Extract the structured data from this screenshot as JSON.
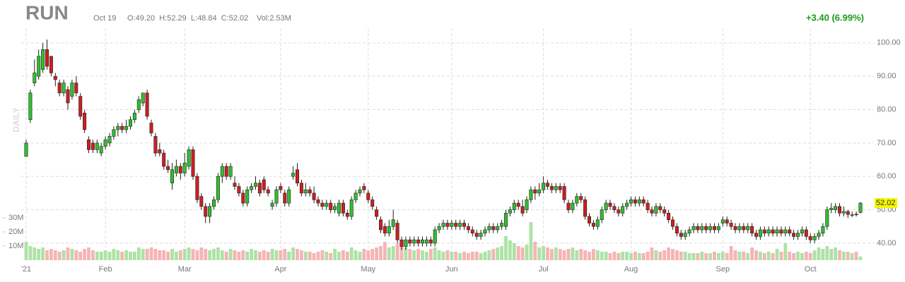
{
  "chart_data": {
    "type": "candlestick",
    "title": "RUN",
    "date_label": "Oct 19",
    "ohlc_label": "O:49.20  H:52.29  L:48.84  C:52.02",
    "volume_label": "Vol:2.53M",
    "change_label": "+3.40 (6.99%)",
    "axis_label": "DAILY",
    "last_price_label": "52.02",
    "categories": [
      "'21",
      null,
      null,
      null,
      null,
      null,
      null,
      null,
      null,
      null,
      null,
      null,
      null,
      null,
      null,
      null,
      null,
      null,
      null,
      "Feb",
      null,
      null,
      null,
      null,
      null,
      null,
      null,
      null,
      null,
      null,
      null,
      null,
      null,
      null,
      null,
      null,
      null,
      null,
      "Mar",
      null,
      null,
      null,
      null,
      null,
      null,
      null,
      null,
      null,
      null,
      null,
      null,
      null,
      null,
      null,
      null,
      null,
      null,
      null,
      null,
      null,
      null,
      "Apr",
      null,
      null,
      null,
      null,
      null,
      null,
      null,
      null,
      null,
      null,
      null,
      null,
      null,
      null,
      null,
      null,
      null,
      null,
      null,
      null,
      "May",
      null,
      null,
      null,
      null,
      null,
      null,
      null,
      null,
      null,
      null,
      null,
      null,
      null,
      null,
      null,
      null,
      null,
      null,
      null,
      "Jun",
      null,
      null,
      null,
      null,
      null,
      null,
      null,
      null,
      null,
      null,
      null,
      null,
      null,
      null,
      null,
      null,
      null,
      null,
      null,
      null,
      null,
      "Jul",
      null,
      null,
      null,
      null,
      null,
      null,
      null,
      null,
      null,
      null,
      null,
      null,
      null,
      null,
      null,
      null,
      null,
      null,
      null,
      null,
      "Aug",
      null,
      null,
      null,
      null,
      null,
      null,
      null,
      null,
      null,
      null,
      null,
      null,
      null,
      null,
      null,
      null,
      null,
      null,
      null,
      null,
      null,
      "Sep",
      null,
      null,
      null,
      null,
      null,
      null,
      null,
      null,
      null,
      null,
      null,
      null,
      null,
      null,
      null,
      null,
      null,
      null,
      null,
      null,
      "Oct",
      null,
      null,
      null,
      null,
      null,
      null,
      null,
      null,
      null,
      null,
      null,
      null
    ],
    "open": [
      66,
      77,
      88,
      90,
      92,
      98,
      96,
      90,
      88,
      85,
      86,
      84,
      88,
      84,
      79,
      71,
      70,
      68,
      67,
      69,
      70,
      72,
      74,
      75,
      74,
      75,
      77,
      80,
      82,
      85,
      76,
      72,
      68,
      67,
      63,
      58,
      61,
      63,
      61,
      63,
      68,
      60,
      54,
      51,
      48,
      51,
      53,
      60,
      63,
      60,
      58,
      57,
      55,
      52,
      56,
      57,
      58,
      59,
      56,
      51,
      52,
      57,
      55,
      52,
      60,
      62,
      58,
      55,
      56,
      55,
      53,
      52,
      51,
      52,
      50,
      49,
      52,
      49,
      48,
      53,
      55,
      57,
      55,
      53,
      50,
      47,
      45,
      43,
      45,
      46,
      41,
      39,
      41,
      40,
      41,
      40,
      40,
      41,
      40,
      44,
      45,
      46,
      45,
      46,
      45,
      46,
      45,
      44,
      43,
      42,
      43,
      44,
      45,
      44,
      45,
      45,
      49,
      50,
      52,
      51,
      50,
      53,
      56,
      55,
      56,
      58,
      57,
      56,
      57,
      57,
      52,
      50,
      52,
      54,
      53,
      48,
      46,
      45,
      47,
      50,
      52,
      51,
      50,
      49,
      51,
      52,
      53,
      52,
      53,
      52,
      50,
      49,
      51,
      50,
      49,
      47,
      45,
      43,
      42,
      43,
      44,
      45,
      44,
      45,
      44,
      45,
      44,
      46,
      47,
      46,
      45,
      44,
      45,
      44,
      45,
      43,
      42,
      44,
      43,
      44,
      43,
      44,
      43,
      44,
      43,
      42,
      43,
      44,
      42,
      41,
      42,
      43,
      45,
      50,
      50,
      51,
      49,
      49.5,
      48.5,
      48.7,
      49.2
    ],
    "high": [
      71,
      86,
      95,
      98,
      100,
      101,
      96,
      91,
      89,
      89,
      87,
      89,
      90,
      85,
      80,
      72,
      71,
      71,
      70,
      72,
      73,
      75,
      76,
      76,
      77,
      78,
      80,
      84,
      85,
      86,
      77,
      73,
      70,
      68,
      65,
      64,
      65,
      64,
      67,
      69,
      69,
      61,
      55,
      52,
      52,
      54,
      61,
      64,
      64,
      64,
      60,
      58,
      56,
      57,
      58,
      60,
      59,
      60,
      57,
      53,
      57,
      58,
      56,
      57,
      63,
      64,
      59,
      58,
      57,
      57,
      54,
      53,
      53,
      53,
      52,
      53,
      53,
      50,
      54,
      56,
      57,
      58,
      56,
      54,
      51,
      48,
      46,
      47,
      50,
      47,
      42,
      42,
      42,
      42,
      42,
      42,
      42,
      42,
      45,
      46,
      47,
      47,
      47,
      47,
      47,
      47,
      46,
      45,
      44,
      44,
      45,
      46,
      46,
      46,
      47,
      50,
      51,
      53,
      53,
      53,
      54,
      57,
      57,
      58,
      60,
      59,
      58,
      58,
      58,
      58,
      53,
      53,
      55,
      55,
      54,
      49,
      47,
      48,
      51,
      53,
      53,
      52,
      51,
      52,
      53,
      54,
      54,
      54,
      54,
      53,
      51,
      52,
      52,
      51,
      50,
      48,
      46,
      44,
      44,
      45,
      46,
      46,
      46,
      46,
      46,
      46,
      46,
      48,
      48,
      47,
      46,
      46,
      46,
      46,
      46,
      44,
      45,
      45,
      45,
      45,
      45,
      45,
      45,
      45,
      44,
      44,
      45,
      45,
      43,
      43,
      44,
      46,
      51,
      52,
      52,
      52,
      51,
      50,
      49.5,
      49.5,
      52.29
    ],
    "low": [
      66,
      76,
      87,
      89,
      91,
      92,
      90,
      87,
      84,
      84,
      80,
      83,
      84,
      77,
      73,
      67,
      67,
      67,
      66,
      68,
      69,
      71,
      72,
      73,
      73,
      74,
      76,
      79,
      81,
      77,
      72,
      66,
      66,
      62,
      61,
      56,
      60,
      59,
      60,
      62,
      59,
      52,
      50,
      46,
      46,
      50,
      52,
      58,
      59,
      59,
      56,
      54,
      51,
      51,
      55,
      56,
      54,
      55,
      54,
      50,
      51,
      55,
      51,
      51,
      59,
      57,
      54,
      54,
      54,
      52,
      51,
      50,
      50,
      49,
      49,
      48,
      48,
      47,
      47,
      52,
      54,
      55,
      52,
      50,
      47,
      43,
      42,
      42,
      44,
      40,
      38,
      38,
      39,
      39,
      39,
      39,
      39,
      39,
      39,
      43,
      44,
      44,
      44,
      44,
      44,
      44,
      43,
      42,
      41,
      41,
      42,
      43,
      43,
      43,
      44,
      44,
      48,
      49,
      50,
      48,
      49,
      52,
      53,
      54,
      55,
      56,
      55,
      55,
      55,
      52,
      49,
      49,
      51,
      52,
      47,
      45,
      44,
      44,
      46,
      49,
      50,
      49,
      48,
      48,
      50,
      51,
      51,
      51,
      51,
      49,
      48,
      48,
      49,
      48,
      46,
      44,
      42,
      41,
      41,
      42,
      43,
      43,
      43,
      43,
      43,
      43,
      43,
      45,
      45,
      44,
      43,
      43,
      43,
      43,
      42,
      41,
      41,
      42,
      42,
      42,
      42,
      42,
      42,
      42,
      41,
      41,
      42,
      41,
      40,
      40,
      41,
      42,
      44,
      49,
      49,
      48,
      48,
      47.5,
      47.8,
      48,
      48.84
    ],
    "close": [
      70,
      85,
      91,
      96,
      98,
      93,
      91,
      89,
      85,
      88,
      82,
      88,
      85,
      78,
      74,
      68,
      68,
      70,
      69,
      71,
      72,
      74,
      75,
      74,
      75,
      77,
      79,
      83,
      85,
      78,
      73,
      67,
      67,
      63,
      62,
      62,
      63,
      61,
      64,
      68,
      60,
      53,
      51,
      48,
      51,
      53,
      60,
      63,
      60,
      63,
      57,
      55,
      52,
      56,
      57,
      58,
      55,
      56,
      55,
      52,
      56,
      56,
      52,
      56,
      61,
      58,
      55,
      56,
      55,
      53,
      52,
      51,
      52,
      50,
      51,
      52,
      49,
      48,
      53,
      55,
      56,
      56,
      53,
      51,
      48,
      44,
      43,
      45,
      47,
      41,
      39,
      41,
      40,
      41,
      40,
      41,
      41,
      40,
      44,
      45,
      46,
      45,
      46,
      45,
      46,
      45,
      44,
      43,
      42,
      43,
      44,
      45,
      44,
      45,
      46,
      49,
      50,
      52,
      51,
      49,
      53,
      56,
      55,
      56,
      58,
      57,
      56,
      57,
      56,
      53,
      50,
      52,
      54,
      53,
      48,
      46,
      45,
      47,
      50,
      52,
      51,
      50,
      49,
      51,
      52,
      53,
      52,
      53,
      52,
      50,
      49,
      51,
      50,
      49,
      47,
      45,
      43,
      42,
      43,
      44,
      45,
      44,
      45,
      44,
      45,
      44,
      45,
      47,
      46,
      45,
      44,
      45,
      44,
      45,
      43,
      42,
      44,
      43,
      44,
      43,
      44,
      43,
      44,
      43,
      42,
      43,
      44,
      42,
      41,
      42,
      43,
      45,
      50,
      50.5,
      51,
      49,
      49.5,
      48.6,
      48.5,
      48.62,
      52.02
    ],
    "volume": [
      13,
      10,
      9,
      8,
      9,
      7,
      8,
      7,
      6,
      7,
      9,
      8,
      7,
      6,
      8,
      9,
      7,
      6,
      6,
      7,
      6,
      8,
      7,
      6,
      7,
      6,
      6,
      9,
      8,
      8,
      9,
      8,
      7,
      7,
      6,
      8,
      6,
      7,
      8,
      9,
      8,
      7,
      9,
      8,
      7,
      8,
      9,
      7,
      6,
      8,
      7,
      6,
      7,
      6,
      8,
      7,
      6,
      7,
      6,
      8,
      7,
      7,
      8,
      6,
      9,
      8,
      7,
      6,
      6,
      5,
      6,
      7,
      6,
      5,
      8,
      6,
      7,
      6,
      9,
      7,
      6,
      8,
      7,
      8,
      9,
      10,
      13,
      9,
      10,
      12,
      11,
      9,
      8,
      7,
      8,
      7,
      6,
      8,
      9,
      7,
      6,
      7,
      6,
      6,
      5,
      6,
      5,
      6,
      6,
      5,
      6,
      7,
      8,
      9,
      10,
      17,
      14,
      12,
      10,
      9,
      11,
      27,
      13,
      9,
      10,
      9,
      8,
      9,
      8,
      7,
      8,
      9,
      7,
      8,
      7,
      6,
      8,
      7,
      6,
      6,
      5,
      6,
      5,
      6,
      6,
      5,
      6,
      5,
      5,
      6,
      9,
      7,
      6,
      7,
      9,
      8,
      7,
      6,
      6,
      5,
      5,
      5,
      6,
      5,
      5,
      6,
      5,
      6,
      5,
      10,
      7,
      6,
      6,
      5,
      9,
      7,
      6,
      5,
      6,
      5,
      8,
      6,
      12,
      6,
      5,
      6,
      5,
      6,
      5,
      7,
      9,
      8,
      10,
      8,
      9,
      7,
      6,
      6,
      5,
      6,
      2.53
    ],
    "ylim": [
      34.7,
      104.4
    ],
    "yticks": [
      {
        "value": 40,
        "label": "40.00"
      },
      {
        "value": 50,
        "label": "50.00"
      },
      {
        "value": 60,
        "label": "60.00"
      },
      {
        "value": 70,
        "label": "70.00"
      },
      {
        "value": 80,
        "label": "80.00"
      },
      {
        "value": 90,
        "label": "90.00"
      },
      {
        "value": 100,
        "label": "100.00"
      }
    ],
    "volume_lim": [
      0,
      31
    ],
    "volume_ticks": [
      {
        "value": 10,
        "label": "10M"
      },
      {
        "value": 20,
        "label": "20M"
      },
      {
        "value": 30,
        "label": "30M"
      }
    ],
    "grid": true,
    "up_color": "#2fbf2f",
    "down_color": "#cc1f1f",
    "up_volume_color": "#aee2a6",
    "down_volume_color": "#f5b5b5"
  }
}
